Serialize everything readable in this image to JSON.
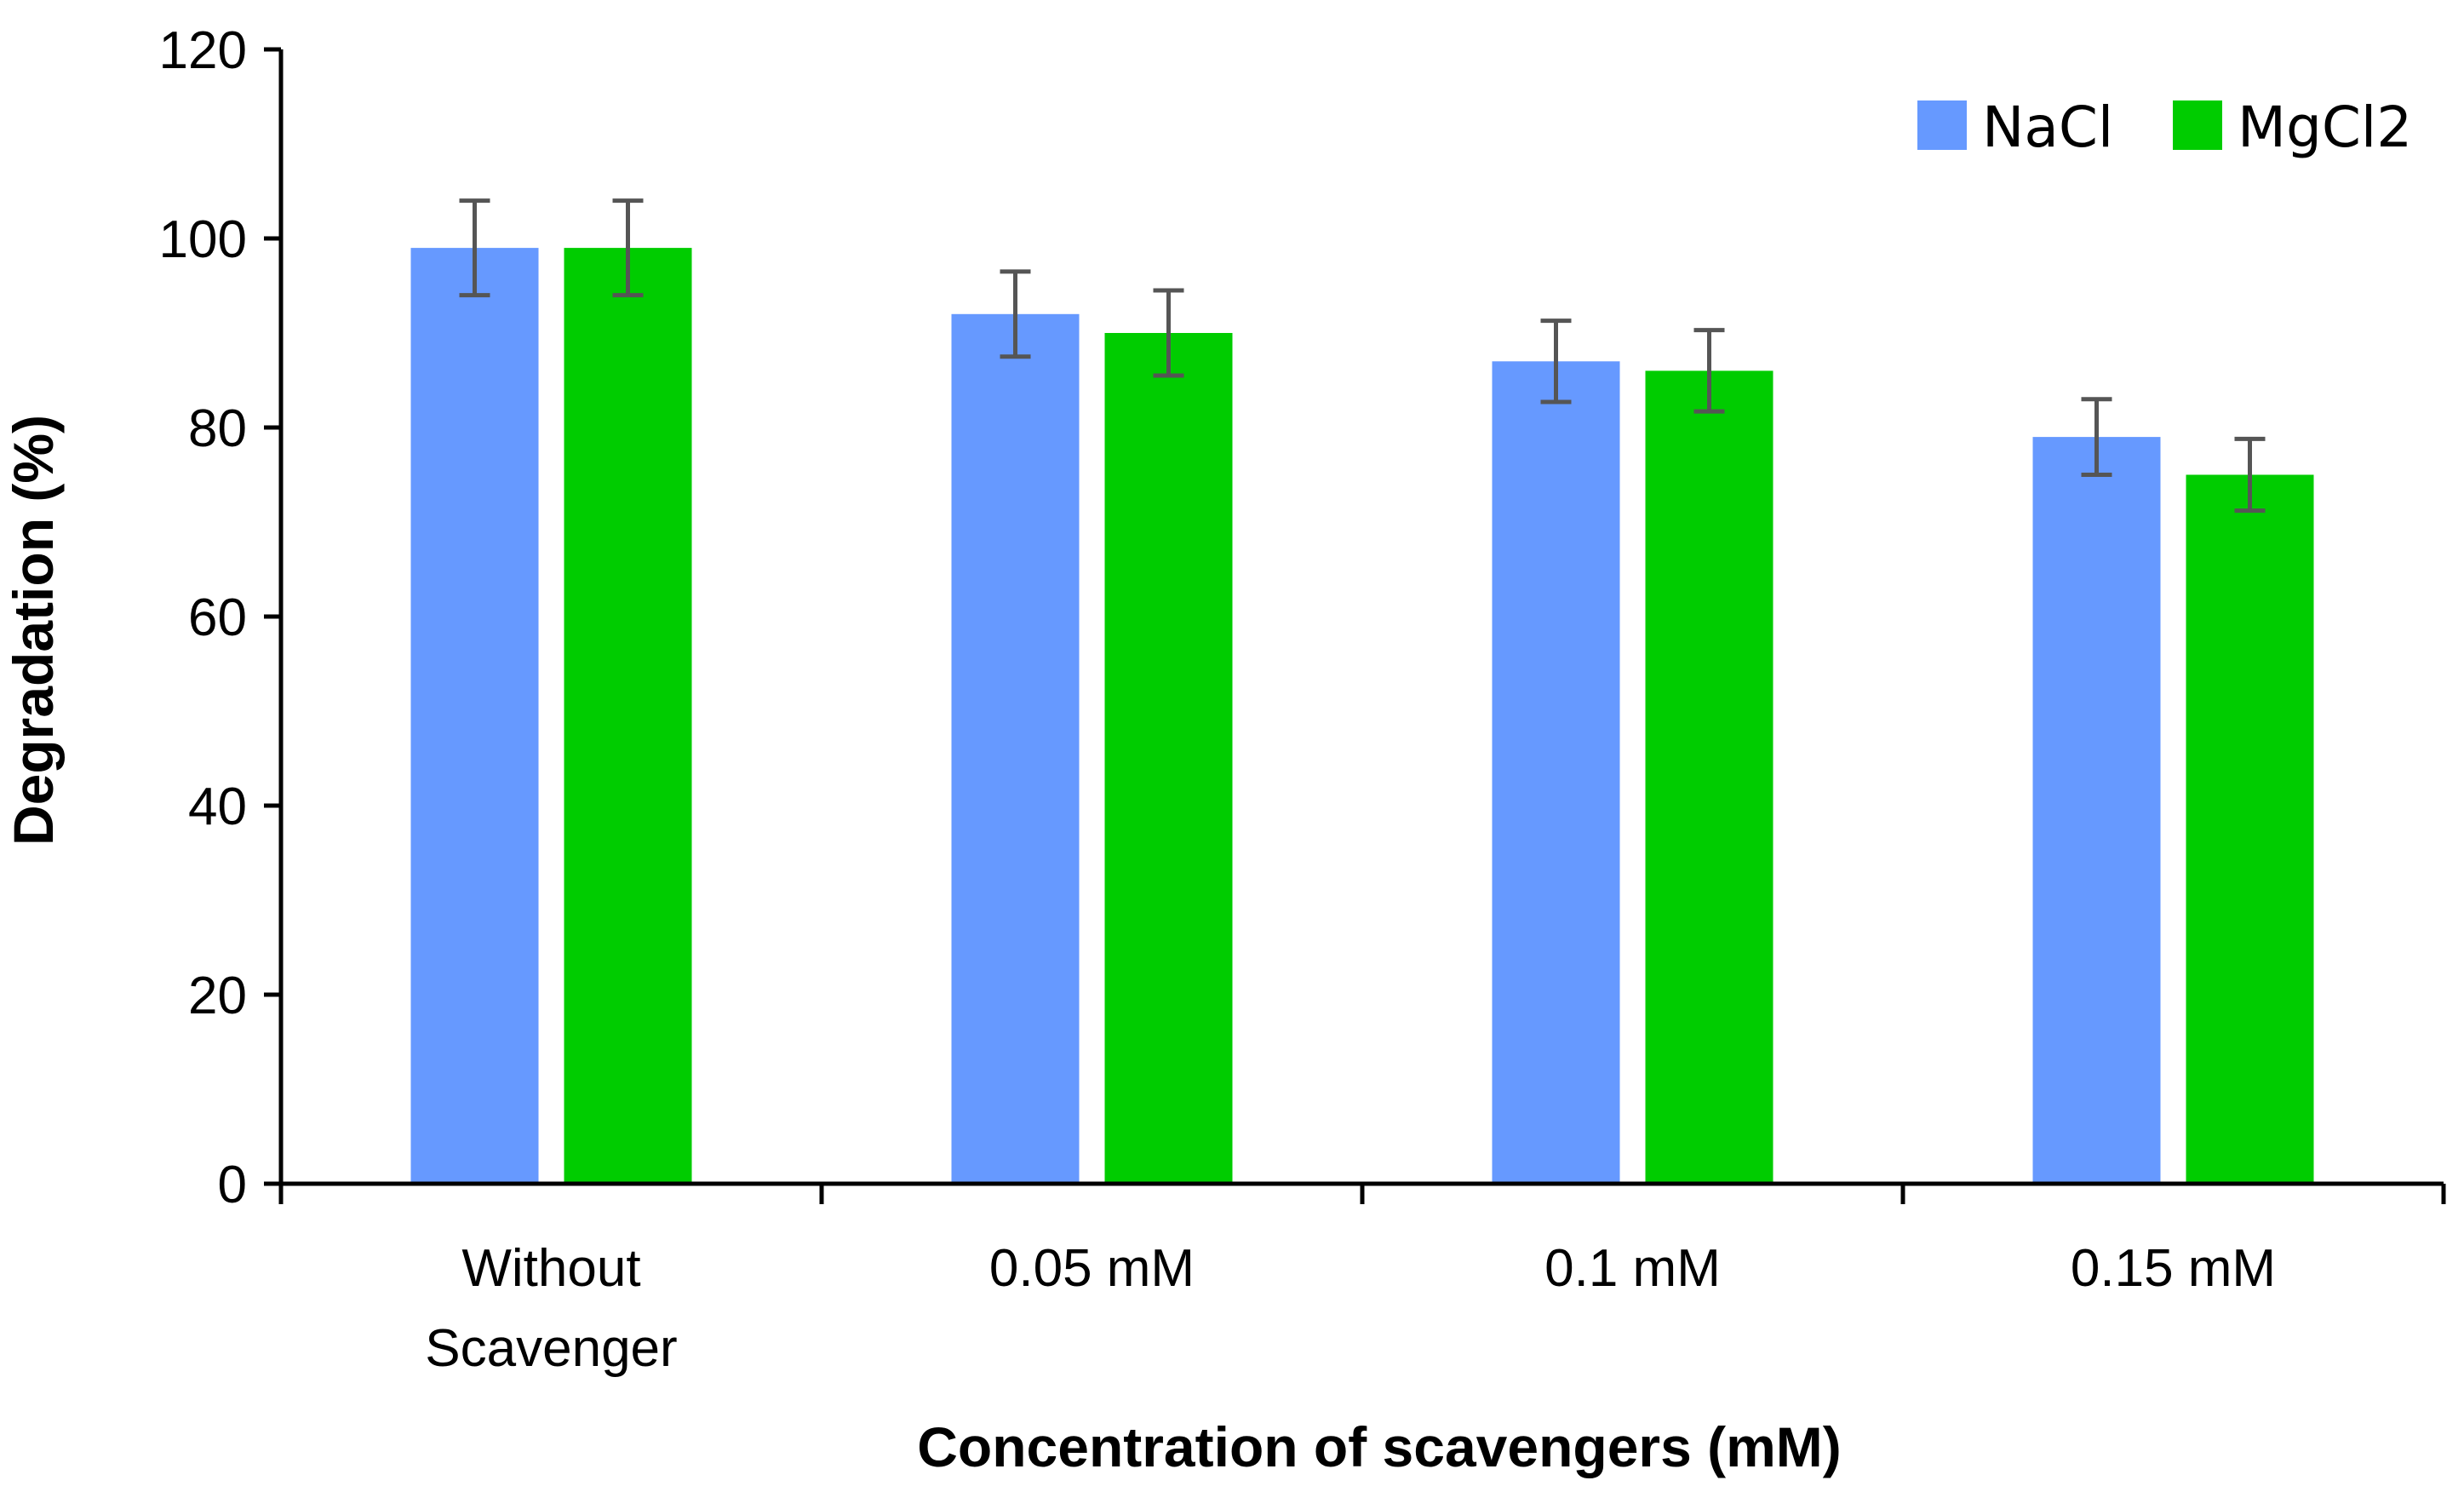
{
  "chart_data": {
    "type": "bar",
    "title": "",
    "xlabel": "Concentration of scavengers (mM)",
    "ylabel": "Degradation (%)",
    "ylim": [
      0,
      120
    ],
    "yticks": [
      "0",
      "20",
      "40",
      "60",
      "80",
      "100",
      "120"
    ],
    "categories": [
      [
        "Without",
        "Scavenger"
      ],
      [
        "0.05 mM"
      ],
      [
        "0.1 mM"
      ],
      [
        "0.15 mM"
      ]
    ],
    "series": [
      {
        "name": "NaCl",
        "color": "#6699ff",
        "values": [
          99,
          92,
          87,
          79
        ],
        "errors": [
          5,
          4.5,
          4.3,
          4
        ]
      },
      {
        "name": "MgCl2",
        "color": "#00cc00",
        "values": [
          99,
          90,
          86,
          75
        ],
        "errors": [
          5,
          4.5,
          4.3,
          3.8
        ]
      }
    ],
    "error_bar_color": "#555555",
    "legend_position": "top-right",
    "grid": false
  }
}
